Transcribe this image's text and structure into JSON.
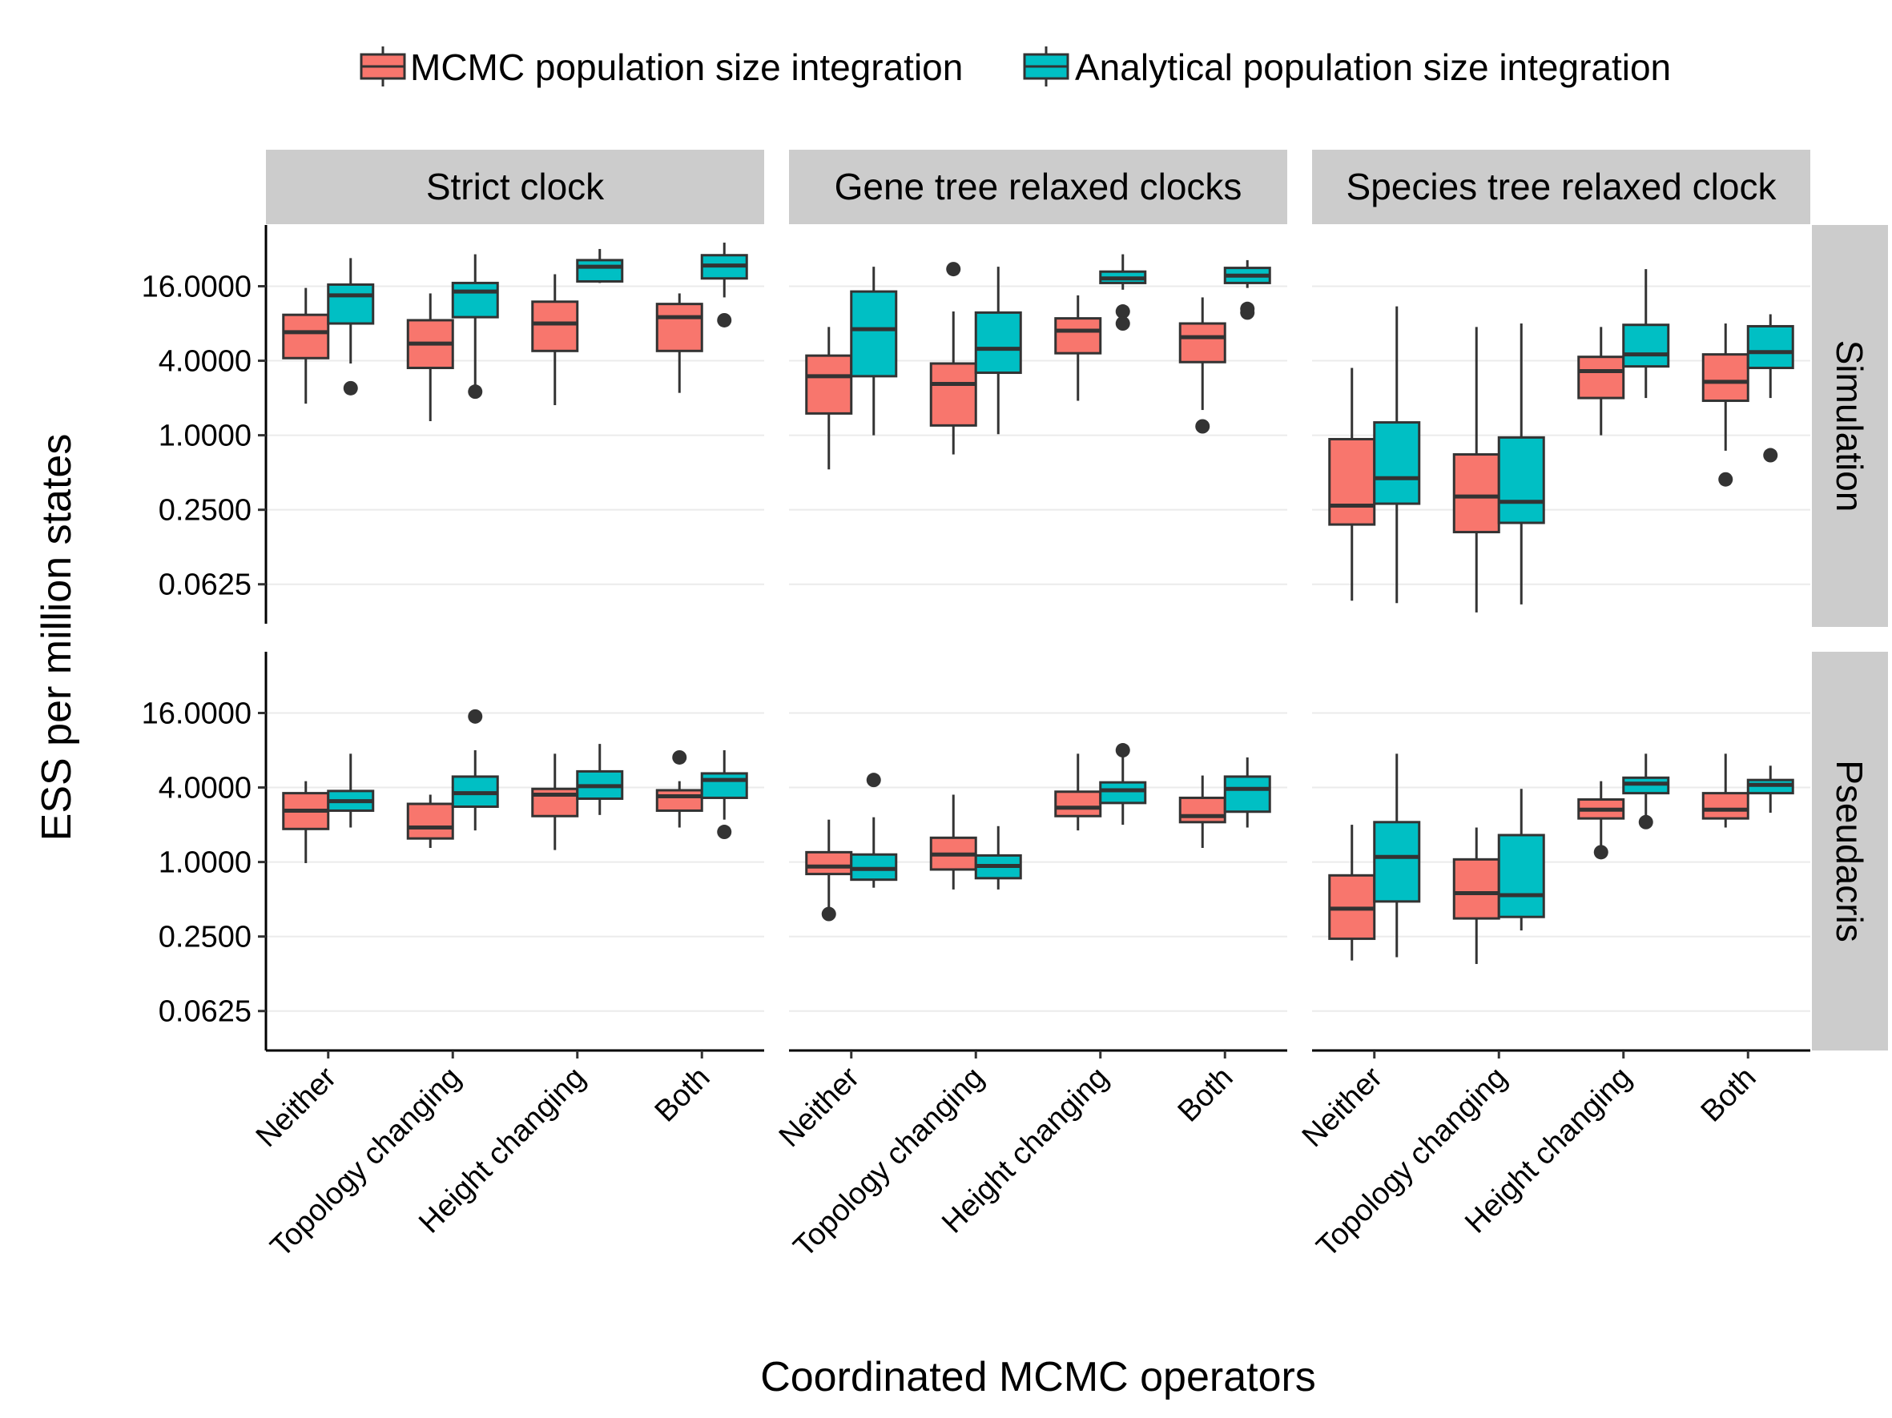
{
  "chart_data": {
    "type": "boxplot",
    "xlabel": "Coordinated MCMC operators",
    "ylabel": "ESS per million states",
    "yscale": "log2",
    "ylim": [
      0.03,
      50
    ],
    "yticks": [
      16,
      4,
      1,
      0.25,
      0.0625
    ],
    "yticklabels": [
      "16.0000",
      "4.0000",
      "1.0000",
      "0.2500",
      "0.0625"
    ],
    "categories": [
      "Neither",
      "Topology changing",
      "Height changing",
      "Both"
    ],
    "columns": [
      "Strict clock",
      "Gene tree relaxed clocks",
      "Species tree relaxed clock"
    ],
    "rows": [
      "Simulation",
      "Pseudacris"
    ],
    "legend": {
      "position": "top",
      "items": [
        "MCMC population size integration",
        "Analytical population size integration"
      ]
    },
    "colors": {
      "MCMC population size integration": "#F8766D",
      "Analytical population size integration": "#00BFC4",
      "strip": "#CCCCCC",
      "grid": "#EBEBEB"
    },
    "panels": [
      {
        "row": "Simulation",
        "column": "Strict clock",
        "series": [
          {
            "name": "MCMC population size integration",
            "boxes": [
              {
                "min": 1.8,
                "q1": 4.2,
                "median": 6.8,
                "q3": 9.4,
                "max": 15.5,
                "outliers": []
              },
              {
                "min": 1.3,
                "q1": 3.5,
                "median": 5.5,
                "q3": 8.5,
                "max": 14.0,
                "outliers": []
              },
              {
                "min": 1.75,
                "q1": 4.8,
                "median": 8.0,
                "q3": 12.0,
                "max": 20.0,
                "outliers": []
              },
              {
                "min": 2.2,
                "q1": 4.8,
                "median": 9.0,
                "q3": 11.5,
                "max": 14.0,
                "outliers": []
              }
            ]
          },
          {
            "name": "Analytical population size integration",
            "boxes": [
              {
                "min": 3.8,
                "q1": 8.0,
                "median": 13.5,
                "q3": 16.5,
                "max": 27.0,
                "outliers": [
                  2.4
                ]
              },
              {
                "min": 2.3,
                "q1": 9.0,
                "median": 14.5,
                "q3": 17.0,
                "max": 29.0,
                "outliers": [
                  2.25
                ]
              },
              {
                "min": 17.0,
                "q1": 17.5,
                "median": 23.0,
                "q3": 26.0,
                "max": 32.0,
                "outliers": []
              },
              {
                "min": 13.0,
                "q1": 18.5,
                "median": 23.5,
                "q3": 28.5,
                "max": 36.0,
                "outliers": [
                  8.5
                ]
              }
            ]
          }
        ]
      },
      {
        "row": "Simulation",
        "column": "Gene tree relaxed clocks",
        "series": [
          {
            "name": "MCMC population size integration",
            "boxes": [
              {
                "min": 0.53,
                "q1": 1.5,
                "median": 3.0,
                "q3": 4.4,
                "max": 7.5,
                "outliers": []
              },
              {
                "min": 0.7,
                "q1": 1.2,
                "median": 2.6,
                "q3": 3.8,
                "max": 10.0,
                "outliers": [
                  22.0
                ]
              },
              {
                "min": 1.9,
                "q1": 4.6,
                "median": 7.0,
                "q3": 8.8,
                "max": 13.5,
                "outliers": []
              },
              {
                "min": 1.6,
                "q1": 3.9,
                "median": 6.2,
                "q3": 8.0,
                "max": 13.0,
                "outliers": [
                  1.18
                ]
              }
            ]
          },
          {
            "name": "Analytical population size integration",
            "boxes": [
              {
                "min": 1.0,
                "q1": 3.0,
                "median": 7.2,
                "q3": 14.5,
                "max": 23.0,
                "outliers": []
              },
              {
                "min": 1.02,
                "q1": 3.2,
                "median": 5.0,
                "q3": 9.8,
                "max": 23.0,
                "outliers": []
              },
              {
                "min": 15.0,
                "q1": 17.0,
                "median": 18.5,
                "q3": 21.0,
                "max": 29.0,
                "outliers": [
                  10.0,
                  8.0
                ]
              },
              {
                "min": 15.5,
                "q1": 17.0,
                "median": 19.5,
                "q3": 22.5,
                "max": 26.0,
                "outliers": [
                  10.5,
                  9.8
                ]
              }
            ]
          }
        ]
      },
      {
        "row": "Simulation",
        "column": "Species tree relaxed clock",
        "series": [
          {
            "name": "MCMC population size integration",
            "boxes": [
              {
                "min": 0.046,
                "q1": 0.19,
                "median": 0.27,
                "q3": 0.93,
                "max": 3.5,
                "outliers": []
              },
              {
                "min": 0.037,
                "q1": 0.165,
                "median": 0.32,
                "q3": 0.7,
                "max": 7.5,
                "outliers": []
              },
              {
                "min": 1.0,
                "q1": 2.0,
                "median": 3.3,
                "q3": 4.3,
                "max": 7.5,
                "outliers": []
              },
              {
                "min": 0.75,
                "q1": 1.9,
                "median": 2.7,
                "q3": 4.5,
                "max": 8.0,
                "outliers": [
                  0.44
                ]
              }
            ]
          },
          {
            "name": "Analytical population size integration",
            "boxes": [
              {
                "min": 0.044,
                "q1": 0.28,
                "median": 0.45,
                "q3": 1.27,
                "max": 11.0,
                "outliers": []
              },
              {
                "min": 0.043,
                "q1": 0.196,
                "median": 0.29,
                "q3": 0.96,
                "max": 8.0,
                "outliers": []
              },
              {
                "min": 2.0,
                "q1": 3.6,
                "median": 4.5,
                "q3": 7.8,
                "max": 22.0,
                "outliers": []
              },
              {
                "min": 2.0,
                "q1": 3.5,
                "median": 4.7,
                "q3": 7.6,
                "max": 9.5,
                "outliers": [
                  0.69
                ]
              }
            ]
          }
        ]
      },
      {
        "row": "Pseudacris",
        "column": "Strict clock",
        "series": [
          {
            "name": "MCMC population size integration",
            "boxes": [
              {
                "min": 0.98,
                "q1": 1.85,
                "median": 2.6,
                "q3": 3.6,
                "max": 4.5,
                "outliers": []
              },
              {
                "min": 1.3,
                "q1": 1.55,
                "median": 1.9,
                "q3": 2.95,
                "max": 3.5,
                "outliers": []
              },
              {
                "min": 1.25,
                "q1": 2.35,
                "median": 3.5,
                "q3": 3.9,
                "max": 7.5,
                "outliers": []
              },
              {
                "min": 1.9,
                "q1": 2.6,
                "median": 3.4,
                "q3": 3.8,
                "max": 4.5,
                "outliers": [
                  7.0
                ]
              }
            ]
          },
          {
            "name": "Analytical population size integration",
            "boxes": [
              {
                "min": 1.9,
                "q1": 2.6,
                "median": 3.1,
                "q3": 3.75,
                "max": 7.5,
                "outliers": []
              },
              {
                "min": 1.8,
                "q1": 2.8,
                "median": 3.6,
                "q3": 4.9,
                "max": 8.0,
                "outliers": [
                  15.0
                ]
              },
              {
                "min": 2.4,
                "q1": 3.25,
                "median": 4.1,
                "q3": 5.4,
                "max": 9.0,
                "outliers": []
              },
              {
                "min": 2.2,
                "q1": 3.3,
                "median": 4.6,
                "q3": 5.2,
                "max": 8.0,
                "outliers": [
                  1.75
                ]
              }
            ]
          }
        ]
      },
      {
        "row": "Pseudacris",
        "column": "Gene tree relaxed clocks",
        "series": [
          {
            "name": "MCMC population size integration",
            "boxes": [
              {
                "min": 0.37,
                "q1": 0.8,
                "median": 0.92,
                "q3": 1.2,
                "max": 2.2,
                "outliers": [
                  0.38
                ]
              },
              {
                "min": 0.6,
                "q1": 0.87,
                "median": 1.15,
                "q3": 1.57,
                "max": 3.5,
                "outliers": []
              },
              {
                "min": 1.8,
                "q1": 2.35,
                "median": 2.75,
                "q3": 3.7,
                "max": 7.5,
                "outliers": []
              },
              {
                "min": 1.3,
                "q1": 2.1,
                "median": 2.35,
                "q3": 3.3,
                "max": 5.0,
                "outliers": []
              }
            ]
          },
          {
            "name": "Analytical population size integration",
            "boxes": [
              {
                "min": 0.62,
                "q1": 0.72,
                "median": 0.88,
                "q3": 1.15,
                "max": 2.3,
                "outliers": [
                  4.6
                ]
              },
              {
                "min": 0.6,
                "q1": 0.74,
                "median": 0.93,
                "q3": 1.13,
                "max": 1.95,
                "outliers": []
              },
              {
                "min": 2.0,
                "q1": 3.0,
                "median": 3.8,
                "q3": 4.4,
                "max": 8.0,
                "outliers": [
                  8.0
                ]
              },
              {
                "min": 1.9,
                "q1": 2.55,
                "median": 3.9,
                "q3": 4.9,
                "max": 7.0,
                "outliers": []
              }
            ]
          }
        ]
      },
      {
        "row": "Pseudacris",
        "column": "Species tree relaxed clock",
        "series": [
          {
            "name": "MCMC population size integration",
            "boxes": [
              {
                "min": 0.16,
                "q1": 0.24,
                "median": 0.42,
                "q3": 0.78,
                "max": 2.0,
                "outliers": []
              },
              {
                "min": 0.15,
                "q1": 0.35,
                "median": 0.56,
                "q3": 1.05,
                "max": 1.9,
                "outliers": []
              },
              {
                "min": 1.2,
                "q1": 2.25,
                "median": 2.65,
                "q3": 3.2,
                "max": 4.5,
                "outliers": [
                  1.2
                ]
              },
              {
                "min": 1.9,
                "q1": 2.25,
                "median": 2.65,
                "q3": 3.6,
                "max": 7.5,
                "outliers": []
              }
            ]
          },
          {
            "name": "Analytical population size integration",
            "boxes": [
              {
                "min": 0.17,
                "q1": 0.48,
                "median": 1.1,
                "q3": 2.1,
                "max": 7.5,
                "outliers": []
              },
              {
                "min": 0.28,
                "q1": 0.36,
                "median": 0.54,
                "q3": 1.65,
                "max": 3.9,
                "outliers": []
              },
              {
                "min": 2.0,
                "q1": 3.6,
                "median": 4.3,
                "q3": 4.8,
                "max": 7.5,
                "outliers": [
                  2.1
                ]
              },
              {
                "min": 2.5,
                "q1": 3.6,
                "median": 4.2,
                "q3": 4.6,
                "max": 6.0,
                "outliers": []
              }
            ]
          }
        ]
      }
    ]
  }
}
